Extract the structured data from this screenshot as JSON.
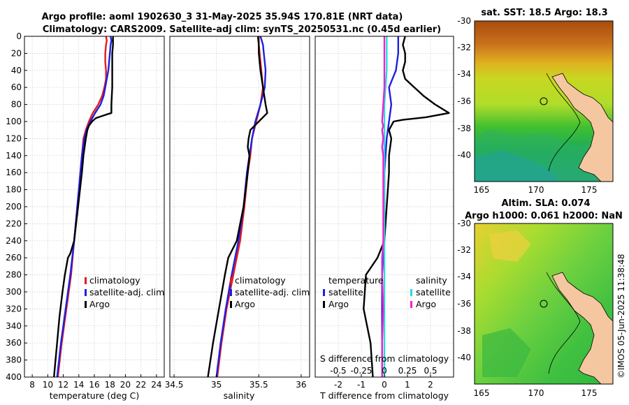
{
  "figure": {
    "title_line1": "Argo profile: aoml 1902630_3 31-May-2025 35.94S 170.81E (NRT data)",
    "title_line2": "Climatology: CARS2009. Satellite-adj clim: synTS_20250531.nc (0.45d earlier)",
    "side_stamp": "©IMOS 05-Jun-2025 11:38:48"
  },
  "colors": {
    "climatology": "#e41a1c",
    "satellite": "#1f1fe0",
    "argo": "#000000",
    "sat_salinity": "#22dddd",
    "salinity_diff": "#ee22cc",
    "land": "#f5c7a0"
  },
  "chart_data": [
    {
      "type": "line",
      "name": "temperature",
      "xlabel": "temperature (deg C)",
      "xlim": [
        7,
        25
      ],
      "xticks": [
        8,
        10,
        12,
        14,
        16,
        18,
        20,
        22,
        24
      ],
      "ylim": [
        0,
        400
      ],
      "yticks": [
        0,
        20,
        40,
        60,
        80,
        100,
        120,
        140,
        160,
        180,
        200,
        220,
        240,
        260,
        280,
        300,
        320,
        340,
        360,
        380,
        400
      ],
      "grid": true,
      "legend": [
        "climatology",
        "satellite-adj. clim",
        "Argo"
      ],
      "series": [
        {
          "name": "climatology",
          "depth": [
            0,
            5,
            10,
            20,
            30,
            40,
            50,
            60,
            70,
            80,
            90,
            100,
            110,
            120,
            140,
            160,
            200,
            240,
            280,
            320,
            360,
            400
          ],
          "values": [
            17.5,
            17.6,
            17.5,
            17.4,
            17.4,
            17.5,
            17.5,
            17.3,
            17.0,
            16.5,
            15.8,
            15.3,
            14.9,
            14.6,
            14.4,
            14.2,
            13.8,
            13.4,
            13.0,
            12.4,
            11.8,
            11.3
          ]
        },
        {
          "name": "satellite-adj. clim",
          "depth": [
            0,
            5,
            10,
            20,
            30,
            40,
            50,
            60,
            70,
            80,
            90,
            100,
            110,
            120,
            140,
            160,
            200,
            240,
            280,
            320,
            360,
            400
          ],
          "values": [
            18.1,
            18.2,
            18.1,
            18.0,
            17.9,
            17.8,
            17.6,
            17.4,
            17.2,
            16.8,
            16.1,
            15.5,
            15.0,
            14.7,
            14.4,
            14.2,
            13.8,
            13.4,
            12.9,
            12.3,
            11.7,
            11.2
          ]
        },
        {
          "name": "Argo",
          "depth": [
            0,
            10,
            20,
            40,
            60,
            80,
            90,
            92,
            96,
            100,
            105,
            110,
            120,
            140,
            160,
            200,
            240,
            255,
            260,
            280,
            300,
            330,
            360,
            400
          ],
          "values": [
            18.4,
            18.4,
            18.3,
            18.3,
            18.3,
            18.2,
            18.2,
            17.5,
            16.2,
            15.7,
            15.3,
            15.1,
            14.9,
            14.6,
            14.4,
            13.9,
            13.4,
            12.9,
            12.6,
            12.2,
            11.9,
            11.5,
            11.2,
            10.8
          ]
        }
      ]
    },
    {
      "type": "line",
      "name": "salinity",
      "xlabel": "salinity",
      "xlim": [
        34.45,
        36.1
      ],
      "xticks": [
        34.5,
        35,
        35.5,
        36
      ],
      "xticklabels": [
        "34.5",
        "35",
        "35.5",
        "36"
      ],
      "ylim": [
        0,
        400
      ],
      "grid": true,
      "legend": [
        "climatology",
        "satellite-adj. clim",
        "Argo"
      ],
      "series": [
        {
          "name": "climatology",
          "depth": [
            0,
            10,
            20,
            40,
            60,
            80,
            100,
            120,
            140,
            160,
            200,
            240,
            280,
            320,
            360,
            400
          ],
          "values": [
            35.5,
            35.5,
            35.51,
            35.53,
            35.55,
            35.52,
            35.47,
            35.42,
            35.4,
            35.37,
            35.33,
            35.28,
            35.2,
            35.12,
            35.06,
            35.01
          ]
        },
        {
          "name": "satellite-adj. clim",
          "depth": [
            0,
            10,
            20,
            40,
            60,
            80,
            100,
            120,
            140,
            160,
            200,
            240,
            280,
            320,
            360,
            400
          ],
          "values": [
            35.52,
            35.55,
            35.56,
            35.58,
            35.57,
            35.52,
            35.46,
            35.42,
            35.39,
            35.36,
            35.32,
            35.26,
            35.18,
            35.11,
            35.05,
            35.0
          ]
        },
        {
          "name": "Argo",
          "depth": [
            0,
            10,
            20,
            40,
            60,
            80,
            90,
            100,
            110,
            120,
            130,
            140,
            160,
            200,
            240,
            260,
            280,
            320,
            360,
            400
          ],
          "values": [
            35.49,
            35.5,
            35.5,
            35.52,
            35.55,
            35.58,
            35.6,
            35.5,
            35.4,
            35.38,
            35.37,
            35.39,
            35.37,
            35.32,
            35.24,
            35.14,
            35.1,
            35.03,
            34.96,
            34.9
          ]
        }
      ]
    },
    {
      "type": "line",
      "name": "difference",
      "xlabel": "T difference from climatology",
      "xlim": [
        -3,
        3
      ],
      "xticks": [
        -2,
        -1,
        0,
        1,
        2
      ],
      "xticklabels": [
        "-2",
        "-1",
        "0",
        "1",
        "2"
      ],
      "top_axis_label": "S difference from climatology",
      "top_ticks": [
        "-0.5",
        "-0.25",
        "0",
        "0.25",
        "0.5"
      ],
      "top_tick_positions": [
        -2,
        -1,
        0,
        1,
        2
      ],
      "ylim": [
        0,
        400
      ],
      "grid": true,
      "legend_temperature": [
        "temperature",
        "satellite",
        "Argo"
      ],
      "legend_salinity": [
        "salinity",
        "satellite",
        "Argo"
      ],
      "series": [
        {
          "name": "T satellite",
          "depth": [
            0,
            10,
            20,
            40,
            60,
            80,
            100,
            120,
            160,
            200,
            240,
            280,
            320,
            360,
            400
          ],
          "values": [
            0.6,
            0.6,
            0.6,
            0.5,
            0.2,
            0.3,
            0.2,
            0.1,
            0.0,
            0.0,
            0.0,
            -0.1,
            -0.1,
            -0.1,
            -0.1
          ]
        },
        {
          "name": "T Argo",
          "depth": [
            0,
            10,
            20,
            30,
            40,
            50,
            60,
            70,
            80,
            85,
            90,
            95,
            98,
            100,
            110,
            120,
            140,
            160,
            200,
            240,
            260,
            280,
            320,
            360,
            400
          ],
          "values": [
            0.9,
            0.8,
            0.9,
            0.9,
            0.8,
            0.9,
            1.3,
            1.7,
            2.2,
            2.5,
            2.8,
            1.8,
            0.8,
            0.4,
            0.2,
            0.3,
            0.2,
            0.2,
            0.1,
            0.0,
            -0.3,
            -0.8,
            -0.9,
            -0.6,
            -0.5
          ]
        },
        {
          "name": "S satellite",
          "depth": [
            0,
            10,
            20,
            40,
            60,
            80,
            100,
            120,
            160,
            200,
            240,
            280,
            320,
            360,
            400
          ],
          "values": [
            0.1,
            0.1,
            0.1,
            0.1,
            0.05,
            0.0,
            0.0,
            0.0,
            0.0,
            0.0,
            0.0,
            0.0,
            0.0,
            0.0,
            0.0
          ]
        },
        {
          "name": "S Argo",
          "depth": [
            0,
            10,
            20,
            40,
            60,
            80,
            100,
            105,
            110,
            120,
            130,
            140,
            160,
            200,
            240,
            260,
            280,
            320,
            360,
            400
          ],
          "values": [
            0.0,
            0.0,
            0.0,
            0.0,
            0.0,
            -0.05,
            -0.1,
            -0.05,
            -0.1,
            -0.05,
            -0.1,
            -0.05,
            -0.05,
            -0.05,
            -0.05,
            -0.1,
            -0.1,
            -0.05,
            -0.1,
            -0.1
          ]
        }
      ]
    },
    {
      "type": "heatmap",
      "name": "sst_map",
      "title": "sat. SST: 18.5 Argo: 18.3",
      "xticks": [
        "165",
        "170",
        "175"
      ],
      "yticks": [
        "-30",
        "-32",
        "-34",
        "-36",
        "-38",
        "-40"
      ],
      "xlim": [
        164,
        177
      ],
      "ylim": [
        -41.8,
        -30
      ],
      "marker": {
        "lon": 170.81,
        "lat": -35.94
      }
    },
    {
      "type": "heatmap",
      "name": "sla_map",
      "title": "Altim. SLA: 0.074",
      "subtitle": "Argo h1000: 0.061 h2000: NaN",
      "xticks": [
        "165",
        "170",
        "175"
      ],
      "yticks": [
        "-30",
        "-32",
        "-34",
        "-36",
        "-38",
        "-40"
      ],
      "xlim": [
        164,
        177
      ],
      "ylim": [
        -41.8,
        -30
      ],
      "marker": {
        "lon": 170.81,
        "lat": -35.94
      }
    }
  ]
}
